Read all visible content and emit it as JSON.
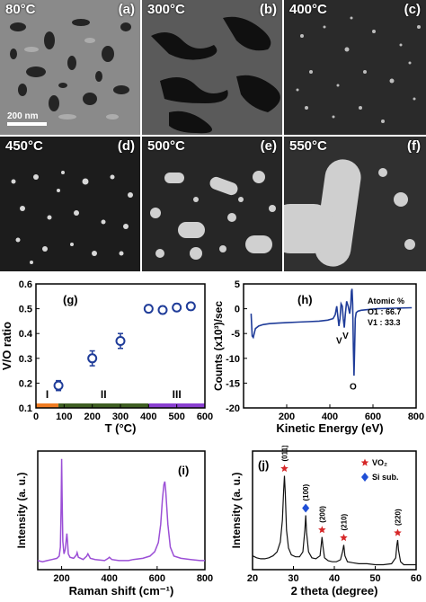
{
  "sem_panels": [
    {
      "temp": "80°C",
      "label": "(a)",
      "scale_bar": "200 nm"
    },
    {
      "temp": "300°C",
      "label": "(b)"
    },
    {
      "temp": "400°C",
      "label": "(c)"
    },
    {
      "temp": "450°C",
      "label": "(d)"
    },
    {
      "temp": "500°C",
      "label": "(e)"
    },
    {
      "temp": "550°C",
      "label": "(f)"
    }
  ],
  "chart_data": [
    {
      "id": "g",
      "type": "scatter",
      "panel_label": "(g)",
      "xlabel": "T (°C)",
      "ylabel": "V/O ratio",
      "xlim": [
        0,
        600
      ],
      "ylim": [
        0.1,
        0.6
      ],
      "xticks": [
        0,
        100,
        200,
        300,
        400,
        500,
        600
      ],
      "yticks": [
        0.1,
        0.2,
        0.3,
        0.4,
        0.5,
        0.6
      ],
      "points": [
        {
          "x": 80,
          "y": 0.19,
          "err": 0.02
        },
        {
          "x": 200,
          "y": 0.3,
          "err": 0.03
        },
        {
          "x": 300,
          "y": 0.37,
          "err": 0.03
        },
        {
          "x": 400,
          "y": 0.5,
          "err": 0.015
        },
        {
          "x": 450,
          "y": 0.495,
          "err": 0.015
        },
        {
          "x": 500,
          "y": 0.505,
          "err": 0.015
        },
        {
          "x": 550,
          "y": 0.51,
          "err": 0.015
        }
      ],
      "regions": [
        {
          "label": "I",
          "from": 0,
          "to": 80,
          "color": "#f07c22"
        },
        {
          "label": "II",
          "from": 80,
          "to": 400,
          "color": "#3f5f23"
        },
        {
          "label": "III",
          "from": 400,
          "to": 600,
          "color": "#8a3fd1"
        }
      ],
      "marker_color": "#1f3c99"
    },
    {
      "id": "h",
      "type": "line",
      "panel_label": "(h)",
      "xlabel": "Kinetic Energy (eV)",
      "ylabel": "Counts (x10³)/sec",
      "xlim": [
        0,
        800
      ],
      "ylim": [
        -20,
        5
      ],
      "xticks": [
        200,
        400,
        600,
        800
      ],
      "yticks": [
        5,
        0,
        -5,
        -10,
        -15,
        -20
      ],
      "annotation": [
        "Atomic %",
        "O1 : 66.7",
        "V1 : 33.3"
      ],
      "peak_labels": [
        {
          "text": "V",
          "x": 443,
          "y": -5.2
        },
        {
          "text": "V",
          "x": 473,
          "y": -4.2
        },
        {
          "text": "O",
          "x": 508,
          "y": -14.5
        }
      ],
      "x": [
        35,
        40,
        45,
        55,
        70,
        90,
        120,
        160,
        200,
        250,
        300,
        350,
        390,
        415,
        425,
        432,
        437,
        442,
        447,
        452,
        458,
        462,
        467,
        472,
        478,
        485,
        492,
        497,
        500,
        503,
        506,
        509,
        512,
        515,
        518,
        522,
        530,
        545,
        570,
        620,
        700,
        780
      ],
      "y": [
        -1,
        -5.5,
        -5.8,
        -4.0,
        -3.5,
        -3.2,
        -3.0,
        -2.9,
        -2.8,
        -2.7,
        -2.6,
        -2.5,
        -2.3,
        -2.0,
        -1.2,
        0.5,
        -1.5,
        -3.5,
        -2.0,
        1.0,
        0.5,
        -2.0,
        -3.8,
        -1.0,
        1.5,
        0.5,
        -1.0,
        0.8,
        3.5,
        4.0,
        1.0,
        -8.0,
        -13.5,
        -8.0,
        -2.0,
        -0.8,
        -0.5,
        -0.3,
        -0.2,
        0.0,
        0.1,
        0.2
      ],
      "line_color": "#1f3c99"
    },
    {
      "id": "i",
      "type": "line",
      "panel_label": "(i)",
      "xlabel": "Raman shift (cm⁻¹)",
      "ylabel": "Intensity (a. u.)",
      "xlim": [
        100,
        800
      ],
      "xticks": [
        200,
        400,
        600,
        800
      ],
      "x": [
        100,
        120,
        140,
        160,
        180,
        190,
        195,
        198,
        200,
        202,
        205,
        210,
        215,
        220,
        222,
        225,
        228,
        235,
        250,
        262,
        265,
        270,
        290,
        305,
        310,
        320,
        340,
        380,
        395,
        400,
        410,
        440,
        480,
        500,
        540,
        570,
        590,
        605,
        615,
        622,
        628,
        632,
        636,
        645,
        655,
        670,
        700,
        740,
        780,
        800
      ],
      "y": [
        8,
        7,
        8,
        9,
        10,
        12,
        20,
        55,
        98,
        65,
        25,
        14,
        18,
        28,
        32,
        24,
        14,
        11,
        10,
        13,
        15,
        11,
        9,
        12,
        14,
        10,
        9,
        8,
        10,
        11,
        9,
        8,
        8,
        9,
        10,
        12,
        16,
        24,
        40,
        62,
        75,
        78,
        70,
        40,
        20,
        12,
        10,
        9,
        8,
        8
      ],
      "line_color": "#9b4fd6"
    },
    {
      "id": "j",
      "type": "line",
      "panel_label": "(j)",
      "xlabel": "2 theta (degree)",
      "ylabel": "Intensity (a. u.)",
      "xlim": [
        20,
        60
      ],
      "xticks": [
        20,
        30,
        40,
        50,
        60
      ],
      "legend": [
        {
          "label": "VO₂",
          "marker": "star",
          "color": "#d62728"
        },
        {
          "label": "Si sub.",
          "marker": "diamond",
          "color": "#1f4fd6"
        }
      ],
      "peaks": [
        {
          "x": 27.8,
          "label": "(011)",
          "marker": "star"
        },
        {
          "x": 33.0,
          "label": "(100)",
          "marker": "diamond"
        },
        {
          "x": 37.0,
          "label": "(200)",
          "marker": "star"
        },
        {
          "x": 42.3,
          "label": "(210)",
          "marker": "star"
        },
        {
          "x": 55.5,
          "label": "(220)",
          "marker": "star"
        }
      ],
      "x": [
        20,
        21,
        22,
        23,
        24,
        25,
        26,
        26.8,
        27.3,
        27.6,
        27.8,
        28.0,
        28.3,
        28.8,
        29.5,
        30.5,
        31.5,
        32.3,
        32.8,
        33.0,
        33.2,
        33.7,
        34.5,
        35.5,
        36.5,
        36.8,
        37.0,
        37.2,
        37.6,
        38.5,
        39.5,
        40.5,
        41.5,
        42.0,
        42.3,
        42.6,
        43.2,
        44.5,
        46,
        48,
        50,
        52,
        54,
        55.0,
        55.3,
        55.5,
        55.7,
        56.2,
        57,
        58,
        59,
        60
      ],
      "y": [
        14,
        12,
        11,
        11,
        12,
        14,
        18,
        28,
        50,
        80,
        95,
        78,
        40,
        22,
        15,
        13,
        13,
        18,
        40,
        55,
        38,
        18,
        12,
        11,
        14,
        25,
        33,
        24,
        12,
        9,
        8,
        8,
        10,
        18,
        25,
        14,
        8,
        7,
        6,
        6,
        5,
        5,
        6,
        12,
        25,
        30,
        20,
        8,
        5,
        5,
        5,
        5
      ],
      "line_color": "#111111"
    }
  ]
}
